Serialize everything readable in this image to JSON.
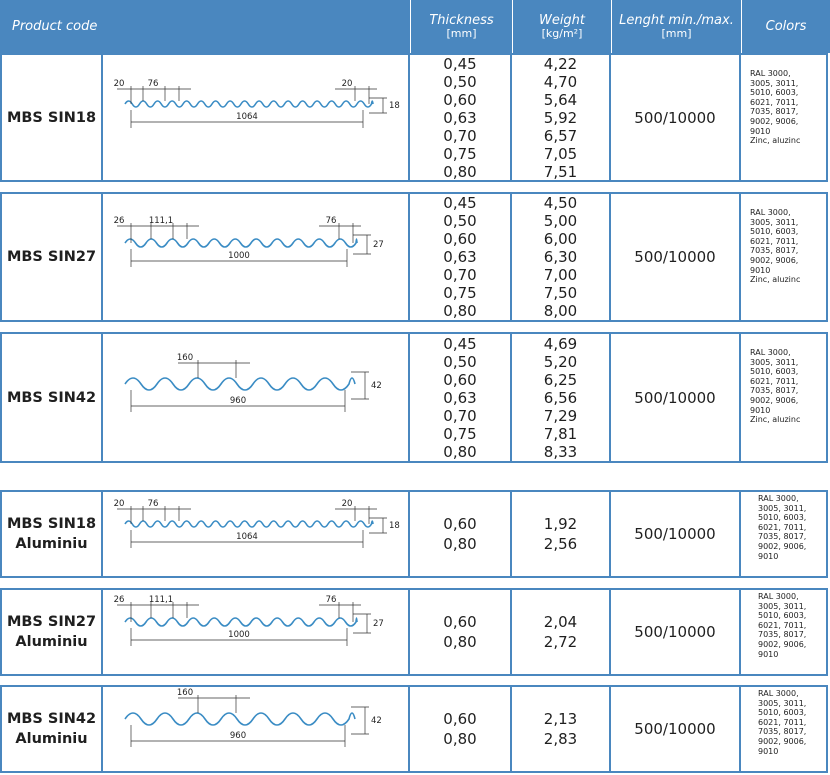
{
  "header": {
    "product_code": "Product code",
    "thickness": "Thickness",
    "thickness_unit": "[mm]",
    "weight": "Weight",
    "weight_unit": "[kg/m²]",
    "length": "Lenght min./max.",
    "length_unit": "[mm]",
    "colors": "Colors"
  },
  "rows": [
    {
      "name": "MBS SIN18",
      "dims": {
        "left": "20",
        "pitch": "76",
        "right": "20",
        "height": "18",
        "width": "1064"
      },
      "thickness": [
        "0,45",
        "0,50",
        "0,60",
        "0,63",
        "0,70",
        "0,75",
        "0,80"
      ],
      "weight": [
        "4,22",
        "4,70",
        "5,64",
        "5,92",
        "6,57",
        "7,05",
        "7,51"
      ],
      "length": "500/10000",
      "colors": [
        "RAL 3000,",
        "3005, 3011,",
        "5010, 6003,",
        "6021, 7011,",
        "7035, 8017,",
        "9002, 9006,",
        "9010",
        "Zinc, aluzinc"
      ]
    },
    {
      "name": "MBS SIN27",
      "dims": {
        "left": "26",
        "pitch": "111,1",
        "right": "76",
        "height": "27",
        "width": "1000"
      },
      "thickness": [
        "0,45",
        "0,50",
        "0,60",
        "0,63",
        "0,70",
        "0,75",
        "0,80"
      ],
      "weight": [
        "4,50",
        "5,00",
        "6,00",
        "6,30",
        "7,00",
        "7,50",
        "8,00"
      ],
      "length": "500/10000",
      "colors": [
        "RAL 3000,",
        "3005, 3011,",
        "5010, 6003,",
        "6021, 7011,",
        "7035, 8017,",
        "9002, 9006,",
        "9010",
        "Zinc, aluzinc"
      ]
    },
    {
      "name": "MBS SIN42",
      "dims": {
        "pitch": "160",
        "height": "42",
        "width": "960"
      },
      "thickness": [
        "0,45",
        "0,50",
        "0,60",
        "0,63",
        "0,70",
        "0,75",
        "0,80"
      ],
      "weight": [
        "4,69",
        "5,20",
        "6,25",
        "6,56",
        "7,29",
        "7,81",
        "8,33"
      ],
      "length": "500/10000",
      "colors": [
        "RAL 3000,",
        "3005, 3011,",
        "5010, 6003,",
        "6021, 7011,",
        "7035, 8017,",
        "9002, 9006,",
        "9010",
        "Zinc, aluzinc"
      ]
    },
    {
      "name": "MBS SIN18",
      "sub": "Aluminiu",
      "dims": {
        "left": "20",
        "pitch": "76",
        "right": "20",
        "height": "18",
        "width": "1064"
      },
      "thickness": [
        "0,60",
        "0,80"
      ],
      "weight": [
        "1,92",
        "2,56"
      ],
      "length": "500/10000",
      "colors": [
        "RAL 3000,",
        "3005, 3011,",
        "5010, 6003,",
        "6021, 7011,",
        "7035, 8017,",
        "9002, 9006,",
        "9010"
      ]
    },
    {
      "name": "MBS SIN27",
      "sub": "Aluminiu",
      "dims": {
        "left": "26",
        "pitch": "111,1",
        "right": "76",
        "height": "27",
        "width": "1000"
      },
      "thickness": [
        "0,60",
        "0,80"
      ],
      "weight": [
        "2,04",
        "2,72"
      ],
      "length": "500/10000",
      "colors": [
        "RAL 3000,",
        "3005, 3011,",
        "5010, 6003,",
        "6021, 7011,",
        "7035, 8017,",
        "9002, 9006,",
        "9010"
      ]
    },
    {
      "name": "MBS SIN42",
      "sub": "Aluminiu",
      "dims": {
        "pitch": "160",
        "height": "42",
        "width": "960"
      },
      "thickness": [
        "0,60",
        "0,80"
      ],
      "weight": [
        "2,13",
        "2,83"
      ],
      "length": "500/10000",
      "colors": [
        "RAL 3000,",
        "3005, 3011,",
        "5010, 6003,",
        "6021, 7011,",
        "7035, 8017,",
        "9002, 9006,",
        "9010"
      ]
    }
  ]
}
